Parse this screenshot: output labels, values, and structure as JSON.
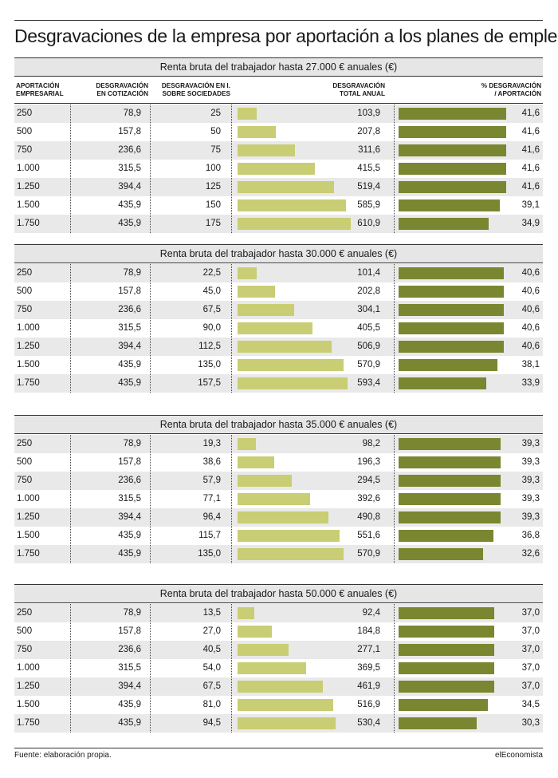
{
  "title": "Desgravaciones de la empresa por aportación a los planes de empleo",
  "columns": [
    "APORTACIÓN\nEMPRESARIAL",
    "DESGRAVACIÓN\nEN COTIZACIÓN",
    "DESGRAVACIÓN EN I.\nSOBRE SOCIEDADES",
    "DESGRAVACIÓN\nTOTAL ANUAL",
    "% DESGRAVACIÓN\n/ APORTACIÓN"
  ],
  "source": "Fuente: elaboración propia.",
  "brand": "elEconomista",
  "colors": {
    "total_bar": "#c9cd73",
    "pct_bar": "#7a8630",
    "shade": "#e9e9e9",
    "header_bg": "#e6e6e6"
  },
  "chart_data": {
    "type": "table",
    "title": "Desgravaciones de la empresa por aportación a los planes de empleo",
    "bar_scale": {
      "total_max": 610.9,
      "pct_max": 41.6
    },
    "sections": [
      {
        "heading": "Renta bruta del trabajador hasta 27.000 € anuales (€)",
        "rows": [
          [
            "250",
            "78,9",
            "25",
            "103,9",
            "41,6"
          ],
          [
            "500",
            "157,8",
            "50",
            "207,8",
            "41,6"
          ],
          [
            "750",
            "236,6",
            "75",
            "311,6",
            "41,6"
          ],
          [
            "1.000",
            "315,5",
            "100",
            "415,5",
            "41,6"
          ],
          [
            "1.250",
            "394,4",
            "125",
            "519,4",
            "41,6"
          ],
          [
            "1.500",
            "435,9",
            "150",
            "585,9",
            "39,1"
          ],
          [
            "1.750",
            "435,9",
            "175",
            "610,9",
            "34,9"
          ]
        ]
      },
      {
        "heading": "Renta bruta del trabajador hasta 30.000 € anuales (€)",
        "rows": [
          [
            "250",
            "78,9",
            "22,5",
            "101,4",
            "40,6"
          ],
          [
            "500",
            "157,8",
            "45,0",
            "202,8",
            "40,6"
          ],
          [
            "750",
            "236,6",
            "67,5",
            "304,1",
            "40,6"
          ],
          [
            "1.000",
            "315,5",
            "90,0",
            "405,5",
            "40,6"
          ],
          [
            "1.250",
            "394,4",
            "112,5",
            "506,9",
            "40,6"
          ],
          [
            "1.500",
            "435,9",
            "135,0",
            "570,9",
            "38,1"
          ],
          [
            "1.750",
            "435,9",
            "157,5",
            "593,4",
            "33,9"
          ]
        ]
      },
      {
        "heading": "Renta bruta del trabajador hasta 35.000 € anuales (€)",
        "rows": [
          [
            "250",
            "78,9",
            "19,3",
            "98,2",
            "39,3"
          ],
          [
            "500",
            "157,8",
            "38,6",
            "196,3",
            "39,3"
          ],
          [
            "750",
            "236,6",
            "57,9",
            "294,5",
            "39,3"
          ],
          [
            "1.000",
            "315,5",
            "77,1",
            "392,6",
            "39,3"
          ],
          [
            "1.250",
            "394,4",
            "96,4",
            "490,8",
            "39,3"
          ],
          [
            "1.500",
            "435,9",
            "115,7",
            "551,6",
            "36,8"
          ],
          [
            "1.750",
            "435,9",
            "135,0",
            "570,9",
            "32,6"
          ]
        ]
      },
      {
        "heading": "Renta bruta del trabajador hasta 50.000 € anuales (€)",
        "rows": [
          [
            "250",
            "78,9",
            "13,5",
            "92,4",
            "37,0"
          ],
          [
            "500",
            "157,8",
            "27,0",
            "184,8",
            "37,0"
          ],
          [
            "750",
            "236,6",
            "40,5",
            "277,1",
            "37,0"
          ],
          [
            "1.000",
            "315,5",
            "54,0",
            "369,5",
            "37,0"
          ],
          [
            "1.250",
            "394,4",
            "67,5",
            "461,9",
            "37,0"
          ],
          [
            "1.500",
            "435,9",
            "81,0",
            "516,9",
            "34,5"
          ],
          [
            "1.750",
            "435,9",
            "94,5",
            "530,4",
            "30,3"
          ]
        ]
      }
    ]
  }
}
